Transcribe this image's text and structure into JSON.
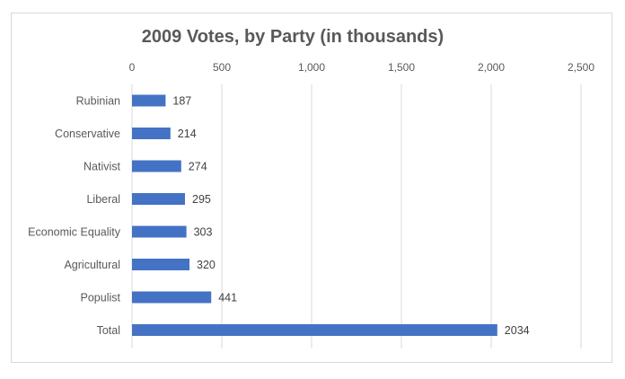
{
  "chart_data": {
    "type": "bar",
    "orientation": "horizontal",
    "title": "2009 Votes, by Party (in thousands)",
    "categories": [
      "Rubinian",
      "Conservative",
      "Nativist",
      "Liberal",
      "Economic Equality",
      "Agricultural",
      "Populist",
      "Total"
    ],
    "values": [
      187,
      214,
      274,
      295,
      303,
      320,
      441,
      2034
    ],
    "xlim": [
      0,
      2500
    ],
    "x_ticks": [
      0,
      500,
      1000,
      1500,
      2000,
      2500
    ],
    "x_tick_labels": [
      "0",
      "500",
      "1,000",
      "1,500",
      "2,000",
      "2,500"
    ],
    "x_axis_position": "top",
    "grid": true,
    "legend": "none",
    "bar_color": "#4472c4",
    "grid_color": "#d9d9d9"
  }
}
